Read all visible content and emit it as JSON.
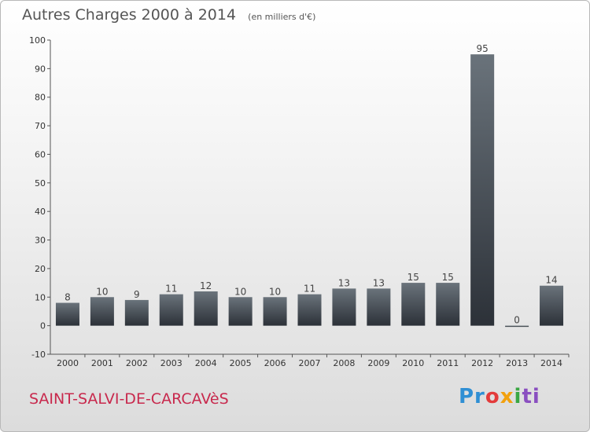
{
  "chart_data": {
    "type": "bar",
    "title": "Autres Charges 2000 à 2014",
    "unit_label": "(en milliers d'€)",
    "categories": [
      "2000",
      "2001",
      "2002",
      "2003",
      "2004",
      "2005",
      "2006",
      "2007",
      "2008",
      "2009",
      "2010",
      "2011",
      "2012",
      "2013",
      "2014"
    ],
    "values": [
      8,
      10,
      9,
      11,
      12,
      10,
      10,
      11,
      13,
      13,
      15,
      15,
      95,
      0,
      14
    ],
    "ylim": [
      -10,
      100
    ],
    "yticks": [
      -10,
      0,
      10,
      20,
      30,
      40,
      50,
      60,
      70,
      80,
      90,
      100
    ],
    "grid": false,
    "colors": {
      "bar_light": "#6a737b",
      "bar_dark": "#2c3138"
    }
  },
  "commune": "SAINT-SALVI-DE-CARCAVèS",
  "logo": {
    "text": "Proxiti",
    "letters": [
      "Pr",
      "o",
      "x",
      "i",
      "ti"
    ]
  }
}
